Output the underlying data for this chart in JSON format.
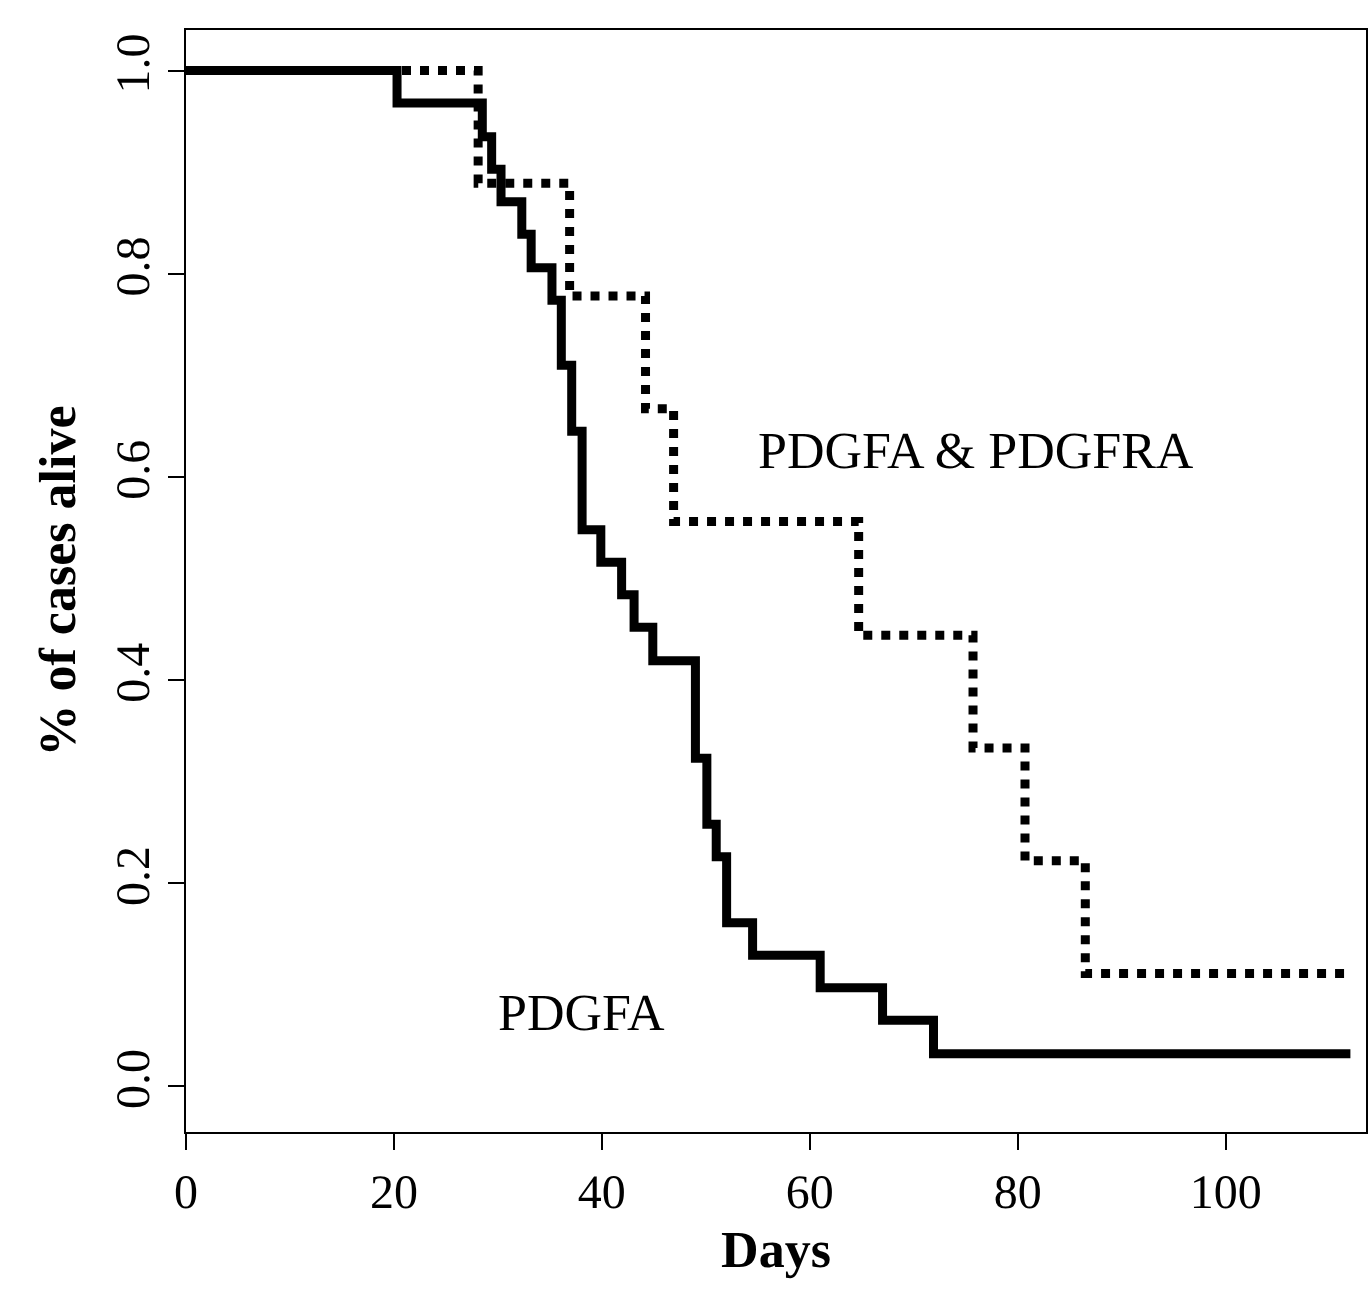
{
  "chart_data": {
    "type": "step",
    "xlabel": "Days",
    "ylabel": "% of cases alive",
    "xlim": [
      0,
      113.5
    ],
    "ylim": [
      -0.045,
      1.04
    ],
    "xticks": [
      0,
      20,
      40,
      60,
      80,
      100
    ],
    "yticks": [
      {
        "value": 0,
        "label": "0.0"
      },
      {
        "value": 0.2,
        "label": "0.2"
      },
      {
        "value": 0.4,
        "label": "0.4"
      },
      {
        "value": 0.6,
        "label": "0.6"
      },
      {
        "value": 0.8,
        "label": "0.8"
      },
      {
        "value": 1,
        "label": "1.0"
      }
    ],
    "legend": false,
    "series": [
      {
        "name": "PDGFA",
        "color": "#000000",
        "line_style": "solid",
        "x": [
          0,
          20.3,
          28.5,
          29.4,
          30.3,
          32.3,
          33.2,
          35.2,
          36.1,
          37.1,
          38.1,
          39.9,
          41.9,
          43.1,
          44.9,
          49.0,
          50.1,
          51.0,
          52.0,
          54.5,
          61.0,
          67.0,
          71.9,
          112
        ],
        "values": [
          1.0,
          0.968,
          0.935,
          0.903,
          0.871,
          0.839,
          0.806,
          0.774,
          0.71,
          0.645,
          0.548,
          0.516,
          0.484,
          0.452,
          0.419,
          0.323,
          0.258,
          0.226,
          0.161,
          0.129,
          0.097,
          0.065,
          0.032,
          0.032
        ]
      },
      {
        "name": "PDGFA & PDGFRA",
        "color": "#000000",
        "line_style": "dotted",
        "x": [
          0,
          28.1,
          36.9,
          44.2,
          46.9,
          64.7,
          75.7,
          80.7,
          86.5,
          112
        ],
        "values": [
          1.0,
          0.889,
          0.778,
          0.667,
          0.556,
          0.444,
          0.333,
          0.222,
          0.111,
          0.111
        ]
      }
    ]
  }
}
